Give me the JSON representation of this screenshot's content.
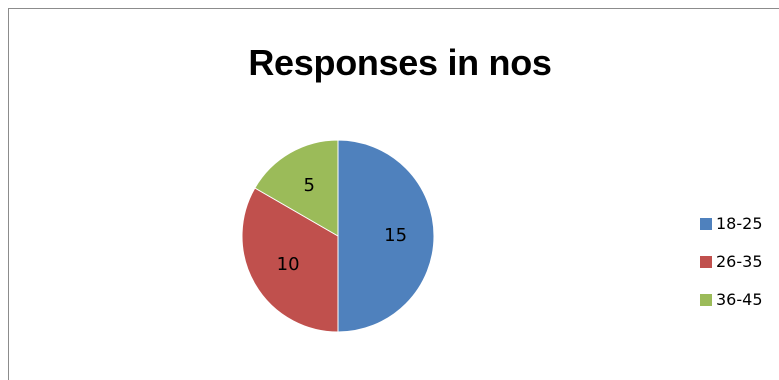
{
  "chart_data": {
    "type": "pie",
    "title": "Responses in nos",
    "categories": [
      "18-25",
      "26-35",
      "36-45"
    ],
    "values": [
      15,
      10,
      5
    ],
    "colors": [
      "#4f81bd",
      "#c0504d",
      "#9bbb59"
    ],
    "legend_position": "right",
    "data_labels": [
      "15",
      "10",
      "5"
    ],
    "legend": [
      {
        "label": "18-25",
        "color": "#4f81bd"
      },
      {
        "label": "26-35",
        "color": "#c0504d"
      },
      {
        "label": "36-45",
        "color": "#9bbb59"
      }
    ]
  }
}
